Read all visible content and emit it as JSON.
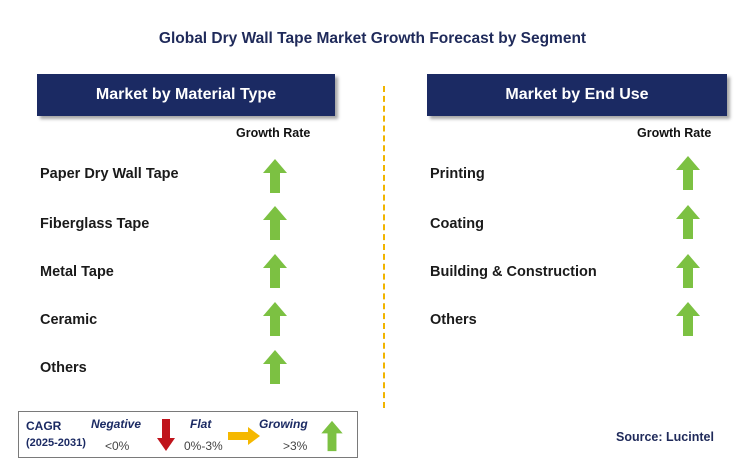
{
  "title": "Global Dry Wall Tape Market Growth Forecast by Segment",
  "left_panel": {
    "header": "Market by Material Type",
    "column_header": "Growth Rate",
    "rows": [
      {
        "label": "Paper Dry Wall Tape",
        "trend": "growing"
      },
      {
        "label": "Fiberglass Tape",
        "trend": "growing"
      },
      {
        "label": "Metal Tape",
        "trend": "growing"
      },
      {
        "label": "Ceramic",
        "trend": "growing"
      },
      {
        "label": "Others",
        "trend": "growing"
      }
    ]
  },
  "right_panel": {
    "header": "Market by End Use",
    "column_header": "Growth Rate",
    "rows": [
      {
        "label": "Printing",
        "trend": "growing"
      },
      {
        "label": "Coating",
        "trend": "growing"
      },
      {
        "label": "Building & Construction",
        "trend": "growing"
      },
      {
        "label": "Others",
        "trend": "growing"
      }
    ]
  },
  "legend": {
    "cagr_label": "CAGR",
    "period": "(2025-2031)",
    "negative_label": "Negative",
    "negative_value": "<0%",
    "flat_label": "Flat",
    "flat_value": "0%-3%",
    "growing_label": "Growing",
    "growing_value": ">3%"
  },
  "source": "Source: Lucintel",
  "colors": {
    "header_bg": "#1b2a63",
    "growing_arrow": "#7cc142",
    "negative_arrow": "#c0141c",
    "flat_arrow": "#f5b800",
    "divider": "#f0b400"
  },
  "icons": {
    "growing": "up-arrow-icon",
    "negative": "down-arrow-icon",
    "flat": "right-arrow-icon"
  }
}
